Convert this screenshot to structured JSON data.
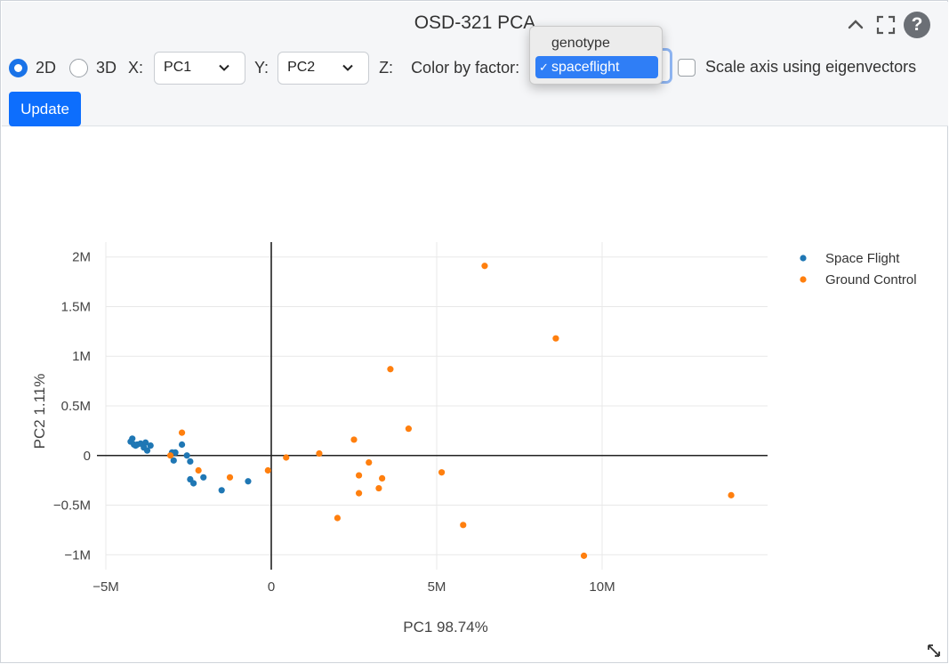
{
  "header": {
    "title": "OSD-321 PCA"
  },
  "controls": {
    "mode_2d_label": "2D",
    "mode_3d_label": "3D",
    "mode_selected": "2D",
    "x_label": "X:",
    "x_value": "PC1",
    "y_label": "Y:",
    "y_value": "PC2",
    "z_label": "Z:",
    "color_by_label": "Color by factor:",
    "color_by_options": [
      "genotype",
      "spaceflight"
    ],
    "color_by_selected": "spaceflight",
    "scale_axis_label": "Scale axis using eigenvectors",
    "scale_axis_checked": false,
    "update_label": "Update",
    "check_mark": "✓"
  },
  "icons": {
    "collapse": "chevron-up-icon",
    "fullscreen": "fullscreen-icon",
    "help": "help-icon",
    "help_glyph": "?",
    "resize": "resize-icon"
  },
  "chart_data": {
    "type": "scatter",
    "title": "",
    "xlabel": "PC1 98.74%",
    "ylabel": "PC2 1.11%",
    "xlim": [
      -5000000,
      15000000
    ],
    "ylim": [
      -1150000,
      2150000
    ],
    "x_ticks": [
      -5000000,
      0,
      5000000,
      10000000
    ],
    "x_tick_labels": [
      "−5M",
      "0",
      "5M",
      "10M"
    ],
    "y_ticks": [
      -1000000,
      -500000,
      0,
      500000,
      1000000,
      1500000,
      2000000
    ],
    "y_tick_labels": [
      "−1M",
      "−0.5M",
      "0",
      "0.5M",
      "1M",
      "1.5M",
      "2M"
    ],
    "grid": true,
    "zero_lines": true,
    "legend_position": "top-right",
    "series": [
      {
        "name": "Space Flight",
        "color": "#1f77b4",
        "points": [
          [
            -4200000,
            170000
          ],
          [
            -4250000,
            140000
          ],
          [
            -4150000,
            110000
          ],
          [
            -4050000,
            110000
          ],
          [
            -3950000,
            120000
          ],
          [
            -3850000,
            80000
          ],
          [
            -3800000,
            130000
          ],
          [
            -3750000,
            50000
          ],
          [
            -3650000,
            100000
          ],
          [
            -4100000,
            100000
          ],
          [
            -2700000,
            110000
          ],
          [
            -3000000,
            30000
          ],
          [
            -2900000,
            30000
          ],
          [
            -2550000,
            0
          ],
          [
            -2950000,
            -50000
          ],
          [
            -2450000,
            -60000
          ],
          [
            -2450000,
            -240000
          ],
          [
            -2350000,
            -280000
          ],
          [
            -2050000,
            -220000
          ],
          [
            -1500000,
            -350000
          ],
          [
            -700000,
            -260000
          ]
        ]
      },
      {
        "name": "Ground Control",
        "color": "#ff7f0e",
        "points": [
          [
            6450000,
            1910000
          ],
          [
            8600000,
            1180000
          ],
          [
            3600000,
            870000
          ],
          [
            4150000,
            270000
          ],
          [
            2500000,
            160000
          ],
          [
            -2700000,
            230000
          ],
          [
            -3050000,
            0
          ],
          [
            -2200000,
            -150000
          ],
          [
            -1250000,
            -220000
          ],
          [
            -100000,
            -150000
          ],
          [
            450000,
            -20000
          ],
          [
            1450000,
            20000
          ],
          [
            2950000,
            -70000
          ],
          [
            2650000,
            -200000
          ],
          [
            3350000,
            -230000
          ],
          [
            5150000,
            -170000
          ],
          [
            3250000,
            -330000
          ],
          [
            2650000,
            -380000
          ],
          [
            2000000,
            -630000
          ],
          [
            5800000,
            -700000
          ],
          [
            9450000,
            -1010000
          ],
          [
            13900000,
            -400000
          ]
        ]
      }
    ]
  }
}
